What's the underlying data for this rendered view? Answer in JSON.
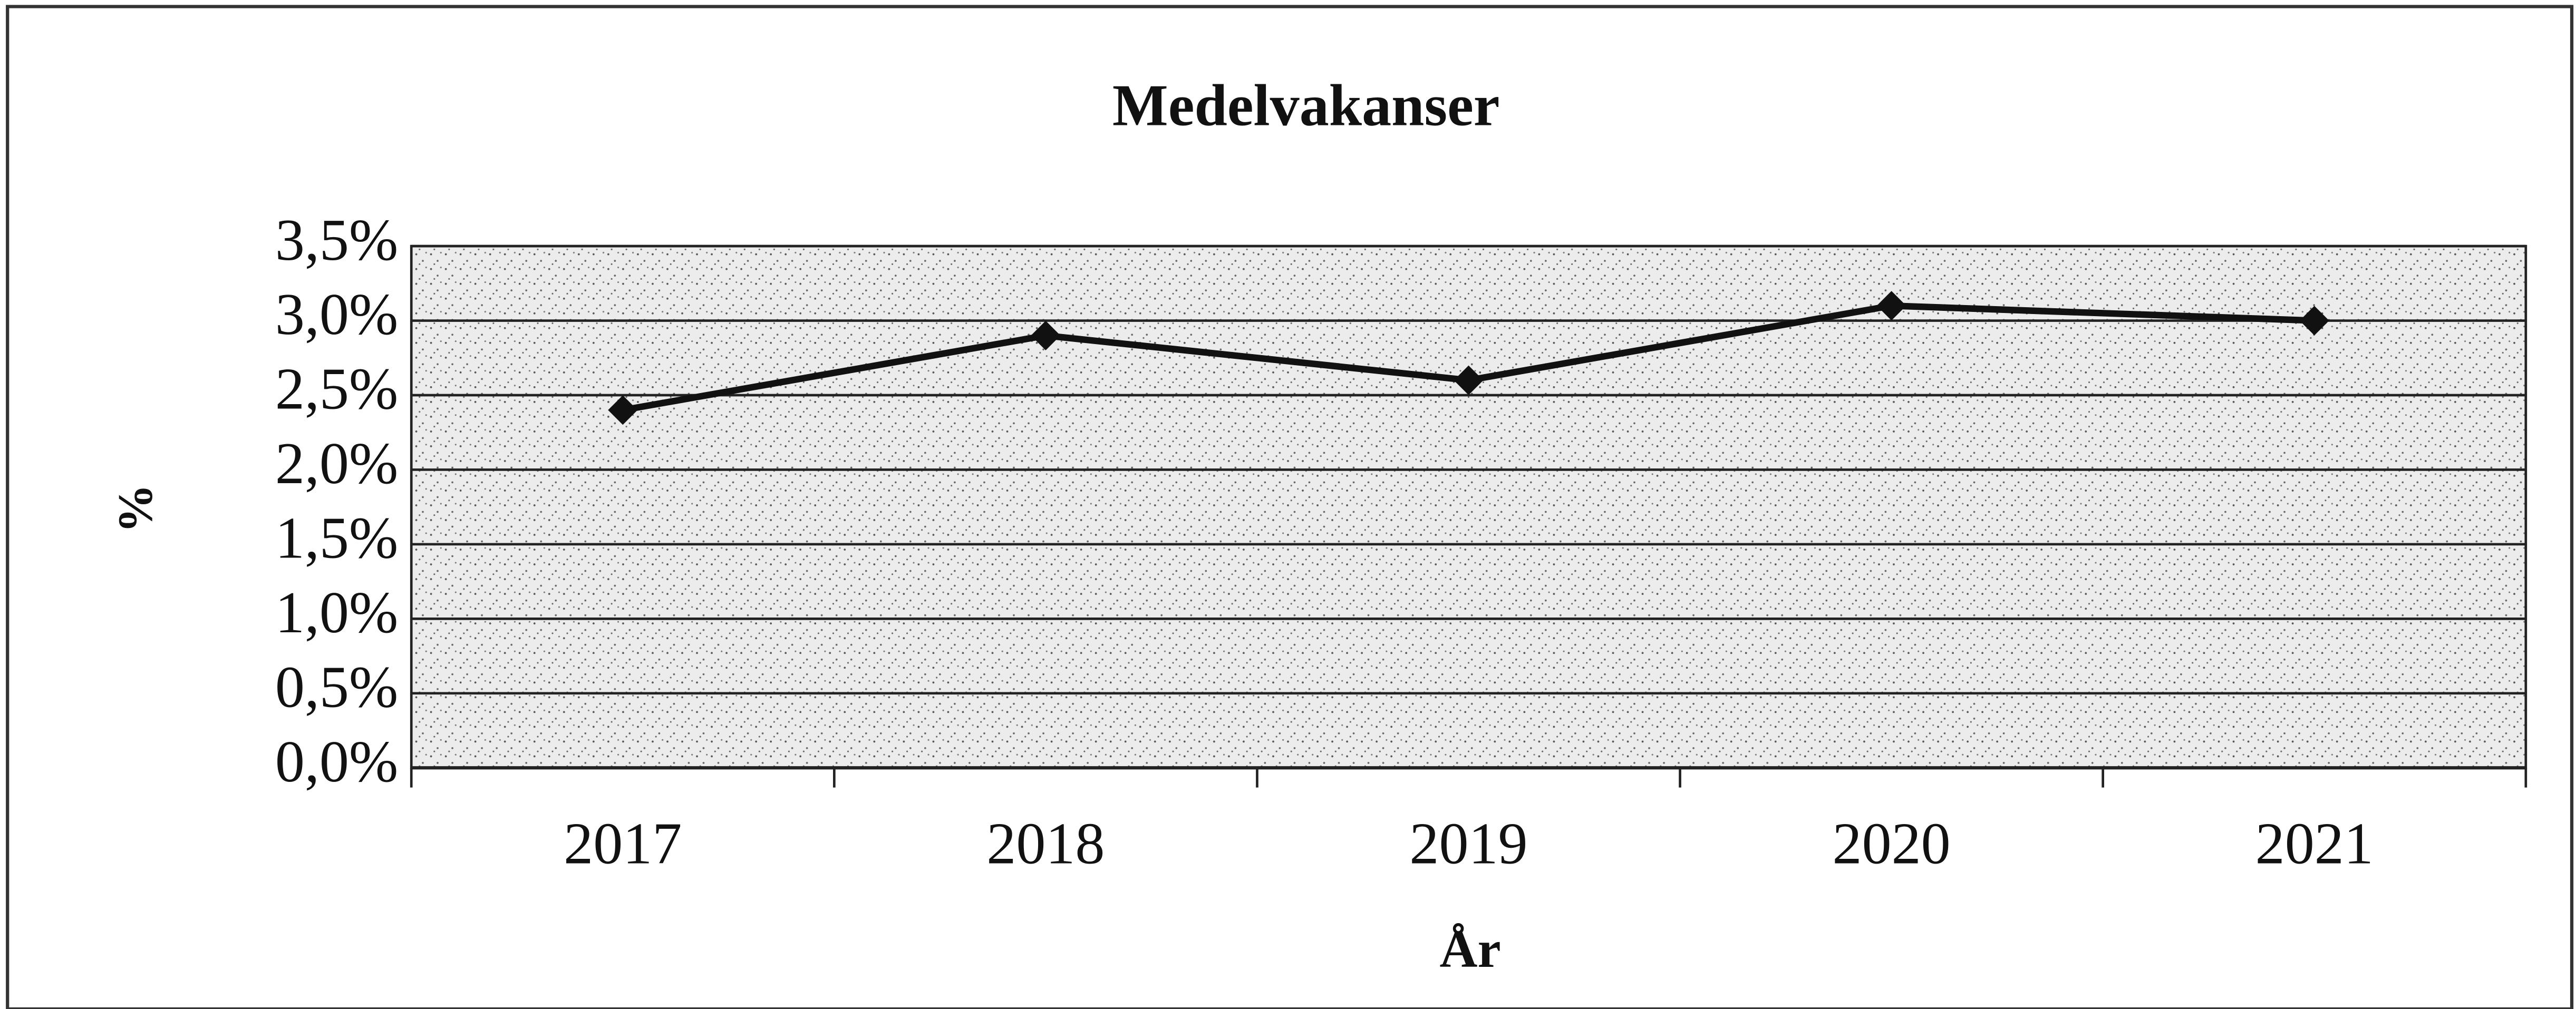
{
  "chart_data": {
    "type": "line",
    "title": "Medelvakanser",
    "x_label": "År",
    "y_label": "%",
    "categories": [
      "2017",
      "2018",
      "2019",
      "2020",
      "2021"
    ],
    "series": [
      {
        "name": "Medelvakanser",
        "color": "#111111",
        "values": [
          2.4,
          2.9,
          2.6,
          3.1,
          3.0
        ]
      }
    ],
    "ylim": [
      0,
      3.5
    ],
    "yticks": [
      {
        "value": 0,
        "label": "0,0%"
      },
      {
        "value": 0.5,
        "label": "0,5%"
      },
      {
        "value": 1,
        "label": "1,0%"
      },
      {
        "value": 1.5,
        "label": "1,5%"
      },
      {
        "value": 2,
        "label": "2,0%"
      },
      {
        "value": 2.5,
        "label": "2,5%"
      },
      {
        "value": 3,
        "label": "3,0%"
      },
      {
        "value": 3.5,
        "label": "3,5%"
      }
    ],
    "grid": true
  }
}
